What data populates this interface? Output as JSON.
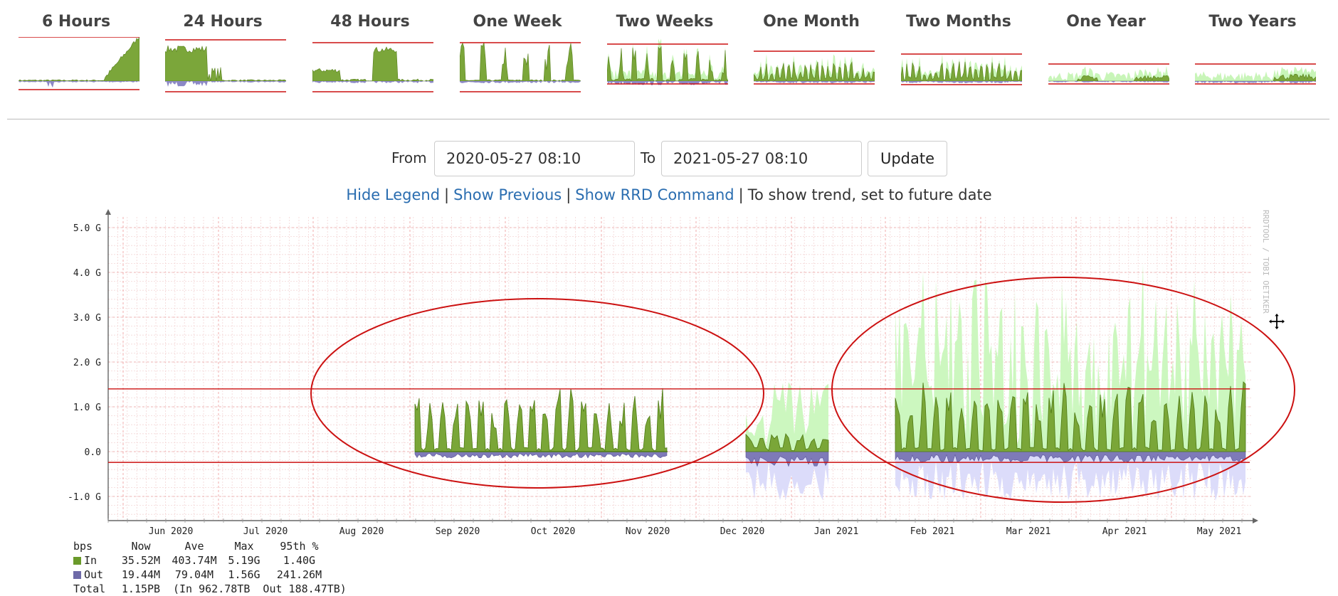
{
  "thumbnails": [
    {
      "label": "6 Hours"
    },
    {
      "label": "24 Hours"
    },
    {
      "label": "48 Hours"
    },
    {
      "label": "One Week"
    },
    {
      "label": "Two Weeks"
    },
    {
      "label": "One Month"
    },
    {
      "label": "Two Months"
    },
    {
      "label": "One Year"
    },
    {
      "label": "Two Years"
    }
  ],
  "controls": {
    "from_label": "From",
    "from_value": "2020-05-27 08:10",
    "to_label": "To",
    "to_value": "2021-05-27 08:10",
    "update_label": "Update"
  },
  "links": {
    "hide_legend": "Hide Legend",
    "show_previous": "Show Previous",
    "show_rrd_command": "Show RRD Command",
    "trend_note": "To show trend, set to future date",
    "separator": "|"
  },
  "colors": {
    "in": "#6a9a2a",
    "in_light": "#c8f5b8",
    "out": "#6e6aa8",
    "out_light": "#d8d8f8",
    "annotation": "#cc1111",
    "link": "#2a6db0"
  },
  "chart_data": {
    "type": "area",
    "watermark": "RRDTOOL / TOBI OETIKER",
    "y_ticks": [
      "5.0 G",
      "4.0 G",
      "3.0 G",
      "2.0 G",
      "1.0 G",
      "0.0",
      "-1.0 G"
    ],
    "y_values": [
      5,
      4,
      3,
      2,
      1,
      0,
      -1
    ],
    "ylim": [
      -1.6,
      5.2
    ],
    "x_ticks": [
      "Jun 2020",
      "Jul 2020",
      "Aug 2020",
      "Sep 2020",
      "Oct 2020",
      "Nov 2020",
      "Dec 2020",
      "Jan 2021",
      "Feb 2021",
      "Mar 2021",
      "Apr 2021",
      "May 2021"
    ],
    "series": [
      {
        "name": "In",
        "color": "#6a9a2a"
      },
      {
        "name": "Out",
        "color": "#6e6aa8"
      }
    ],
    "reference_lines": [
      1.4,
      -0.24
    ],
    "legend": {
      "unit": "bps",
      "headers": [
        "Now",
        "Ave",
        "Max",
        "95th %"
      ],
      "rows": [
        {
          "name": "In",
          "values": [
            "35.52M",
            "403.74M",
            "5.19G",
            "1.40G"
          ]
        },
        {
          "name": "Out",
          "values": [
            "19.44M",
            "79.04M",
            "1.56G",
            "241.26M"
          ]
        }
      ],
      "total": {
        "label": "Total",
        "value": "1.15PB",
        "detail": "(In 962.78TB  Out 188.47TB)"
      }
    }
  }
}
